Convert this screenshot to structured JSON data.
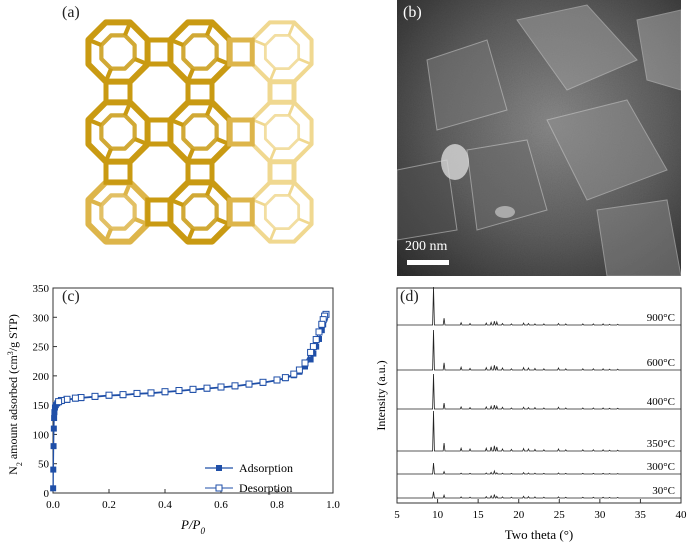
{
  "figure": {
    "panel_a": {
      "label": "(a)"
    },
    "panel_b": {
      "label": "(b)",
      "scale_bar": "200 nm"
    },
    "panel_c": {
      "label": "(c)"
    },
    "panel_d": {
      "label": "(d)"
    }
  },
  "chart_data": [
    {
      "type": "scatter",
      "panel": "(c)",
      "xlabel": "P/P0",
      "ylabel": "N2 amount adsorbed (cm3/g STP)",
      "xlim": [
        0.0,
        1.0
      ],
      "ylim": [
        0,
        350
      ],
      "xticks": [
        "0.0",
        "0.2",
        "0.4",
        "0.6",
        "0.8",
        "1.0"
      ],
      "yticks": [
        "0",
        "50",
        "100",
        "150",
        "200",
        "250",
        "300",
        "350"
      ],
      "legend_placement": "bottom-right",
      "series": [
        {
          "name": "Adsorption",
          "marker": "filled-square",
          "x": [
            0.0005,
            0.001,
            0.002,
            0.003,
            0.004,
            0.005,
            0.007,
            0.01,
            0.015,
            0.02,
            0.03,
            0.05,
            0.08,
            0.1,
            0.15,
            0.2,
            0.25,
            0.3,
            0.35,
            0.4,
            0.45,
            0.5,
            0.55,
            0.6,
            0.65,
            0.7,
            0.75,
            0.8,
            0.83,
            0.86,
            0.88,
            0.9,
            0.92,
            0.93,
            0.94,
            0.95,
            0.96,
            0.965,
            0.97,
            0.975
          ],
          "y": [
            8,
            40,
            80,
            110,
            128,
            138,
            146,
            150,
            153,
            155,
            157,
            159,
            161,
            162,
            164,
            166,
            167,
            169,
            170,
            172,
            174,
            176,
            178,
            180,
            182,
            185,
            188,
            192,
            196,
            201,
            207,
            216,
            228,
            238,
            250,
            263,
            278,
            288,
            298,
            305
          ]
        },
        {
          "name": "Desorption",
          "marker": "open-square",
          "x": [
            0.975,
            0.97,
            0.965,
            0.96,
            0.95,
            0.94,
            0.93,
            0.92,
            0.9,
            0.88,
            0.86,
            0.83,
            0.8,
            0.75,
            0.7,
            0.65,
            0.6,
            0.55,
            0.5,
            0.45,
            0.4,
            0.35,
            0.3,
            0.25,
            0.2,
            0.15,
            0.1,
            0.08,
            0.05,
            0.03,
            0.02
          ],
          "y": [
            305,
            302,
            296,
            288,
            275,
            262,
            250,
            240,
            222,
            210,
            203,
            197,
            193,
            189,
            186,
            183,
            181,
            179,
            177,
            175,
            173,
            171,
            170,
            168,
            167,
            165,
            163,
            162,
            160,
            158,
            156
          ]
        }
      ]
    },
    {
      "type": "line",
      "panel": "(d)",
      "xlabel": "Two theta (°)",
      "ylabel": "Intensity (a.u.)",
      "xlim": [
        5,
        40
      ],
      "xticks": [
        "5",
        "10",
        "15",
        "20",
        "25",
        "30",
        "35",
        "40"
      ],
      "peaks_two_theta": [
        9.5,
        10.8,
        12.9,
        14.0,
        16.0,
        16.6,
        17.0,
        17.3,
        18.0,
        19.1,
        20.6,
        21.2,
        22.0,
        23.1,
        24.9,
        25.8,
        27.9,
        29.2,
        30.4,
        31.2,
        32.2
      ],
      "series": [
        {
          "name": "900°C",
          "peak_heights": [
            1.0,
            0.18,
            0.06,
            0.04,
            0.05,
            0.07,
            0.1,
            0.08,
            0.04,
            0.03,
            0.05,
            0.04,
            0.03,
            0.03,
            0.04,
            0.03,
            0.03,
            0.03,
            0.03,
            0.02,
            0.02
          ]
        },
        {
          "name": "600°C",
          "peak_heights": [
            1.0,
            0.18,
            0.07,
            0.04,
            0.06,
            0.08,
            0.12,
            0.09,
            0.05,
            0.03,
            0.06,
            0.05,
            0.04,
            0.03,
            0.05,
            0.03,
            0.03,
            0.03,
            0.03,
            0.02,
            0.02
          ]
        },
        {
          "name": "400°C",
          "peak_heights": [
            1.0,
            0.17,
            0.06,
            0.04,
            0.06,
            0.08,
            0.11,
            0.08,
            0.05,
            0.03,
            0.05,
            0.04,
            0.04,
            0.03,
            0.05,
            0.03,
            0.03,
            0.03,
            0.03,
            0.02,
            0.02
          ]
        },
        {
          "name": "350°C",
          "peak_heights": [
            1.0,
            0.2,
            0.07,
            0.05,
            0.07,
            0.1,
            0.13,
            0.1,
            0.05,
            0.04,
            0.06,
            0.05,
            0.04,
            0.03,
            0.05,
            0.03,
            0.03,
            0.03,
            0.03,
            0.02,
            0.02
          ]
        },
        {
          "name": "300°C",
          "peak_heights": [
            0.55,
            0.12,
            0.04,
            0.03,
            0.05,
            0.08,
            0.15,
            0.06,
            0.04,
            0.03,
            0.07,
            0.05,
            0.04,
            0.03,
            0.05,
            0.03,
            0.03,
            0.03,
            0.03,
            0.02,
            0.02
          ]
        },
        {
          "name": "30°C",
          "peak_heights": [
            0.45,
            0.2,
            0.08,
            0.06,
            0.1,
            0.15,
            0.25,
            0.12,
            0.08,
            0.06,
            0.12,
            0.1,
            0.08,
            0.06,
            0.08,
            0.05,
            0.05,
            0.05,
            0.05,
            0.04,
            0.04
          ]
        }
      ]
    }
  ]
}
